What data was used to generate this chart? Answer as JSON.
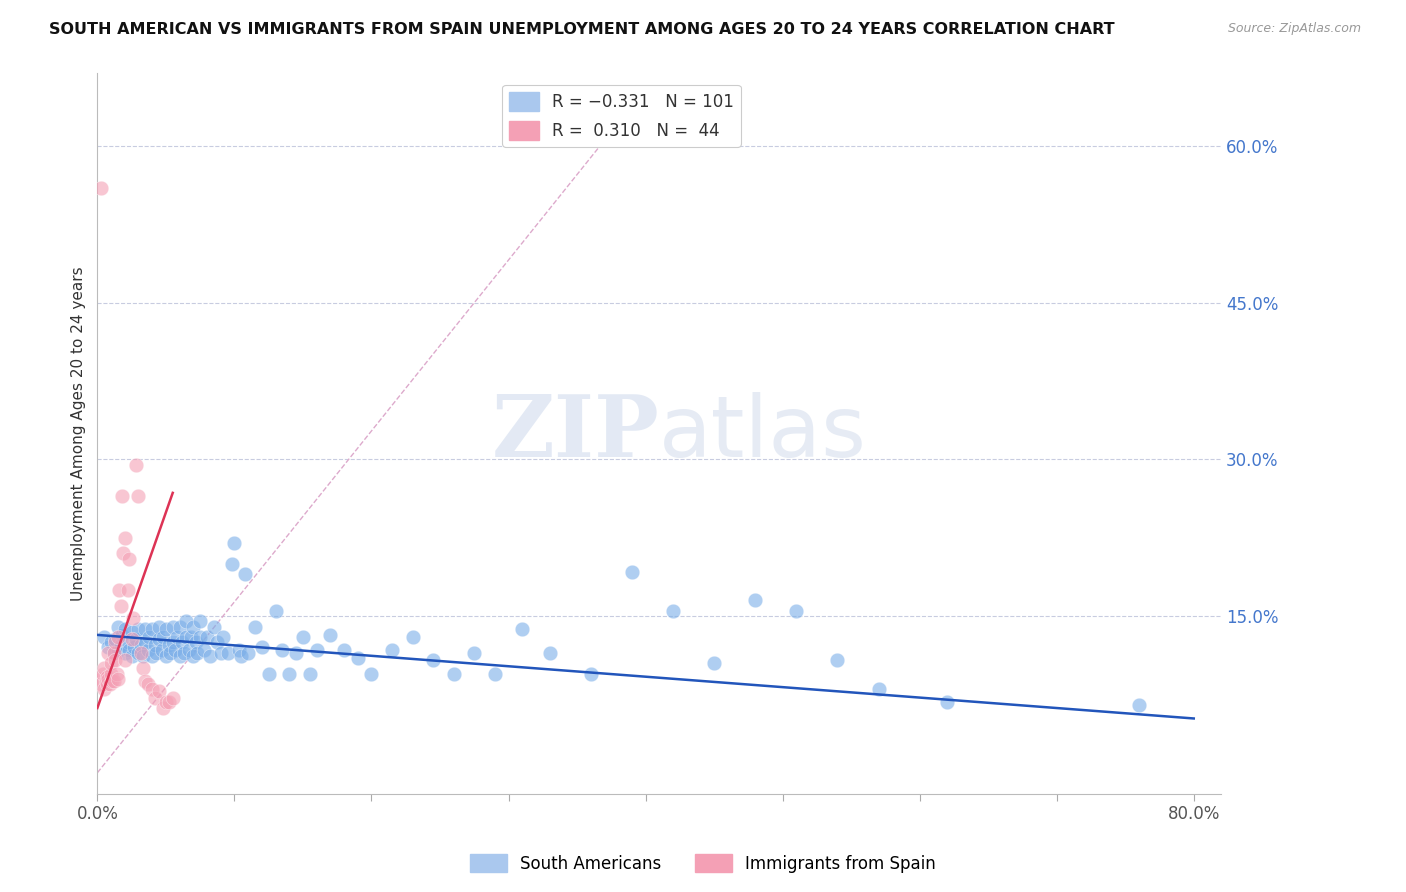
{
  "title": "SOUTH AMERICAN VS IMMIGRANTS FROM SPAIN UNEMPLOYMENT AMONG AGES 20 TO 24 YEARS CORRELATION CHART",
  "source": "Source: ZipAtlas.com",
  "ylabel": "Unemployment Among Ages 20 to 24 years",
  "xlim": [
    0.0,
    0.82
  ],
  "ylim": [
    -0.02,
    0.67
  ],
  "y_ticks_right": [
    0.15,
    0.3,
    0.45,
    0.6
  ],
  "y_tick_labels_right": [
    "15.0%",
    "30.0%",
    "45.0%",
    "60.0%"
  ],
  "watermark_zip": "ZIP",
  "watermark_atlas": "atlas",
  "blue_color": "#7aaee8",
  "pink_color": "#f4a0b5",
  "blue_line_color": "#2255bb",
  "pink_line_color": "#dd3355",
  "diag_line_color": "#ddaacc",
  "blue_line_x": [
    0.0,
    0.8
  ],
  "blue_line_y": [
    0.132,
    0.052
  ],
  "pink_line_x": [
    0.0,
    0.055
  ],
  "pink_line_y": [
    0.062,
    0.268
  ],
  "diag_line_x": [
    0.0,
    0.385
  ],
  "diag_line_y": [
    0.0,
    0.63
  ],
  "blue_scatter_x": [
    0.005,
    0.008,
    0.01,
    0.012,
    0.013,
    0.015,
    0.015,
    0.017,
    0.018,
    0.02,
    0.02,
    0.022,
    0.023,
    0.025,
    0.025,
    0.027,
    0.028,
    0.03,
    0.03,
    0.032,
    0.033,
    0.035,
    0.035,
    0.037,
    0.038,
    0.04,
    0.04,
    0.042,
    0.043,
    0.045,
    0.045,
    0.047,
    0.048,
    0.05,
    0.05,
    0.052,
    0.053,
    0.055,
    0.055,
    0.057,
    0.058,
    0.06,
    0.06,
    0.062,
    0.063,
    0.065,
    0.065,
    0.067,
    0.068,
    0.07,
    0.07,
    0.072,
    0.073,
    0.075,
    0.075,
    0.078,
    0.08,
    0.082,
    0.085,
    0.087,
    0.09,
    0.092,
    0.095,
    0.098,
    0.1,
    0.103,
    0.105,
    0.108,
    0.11,
    0.115,
    0.12,
    0.125,
    0.13,
    0.135,
    0.14,
    0.145,
    0.15,
    0.155,
    0.16,
    0.17,
    0.18,
    0.19,
    0.2,
    0.215,
    0.23,
    0.245,
    0.26,
    0.275,
    0.29,
    0.31,
    0.33,
    0.36,
    0.39,
    0.42,
    0.45,
    0.48,
    0.51,
    0.54,
    0.57,
    0.62,
    0.76
  ],
  "blue_scatter_y": [
    0.13,
    0.12,
    0.125,
    0.115,
    0.128,
    0.118,
    0.14,
    0.122,
    0.132,
    0.115,
    0.138,
    0.125,
    0.118,
    0.112,
    0.135,
    0.12,
    0.128,
    0.115,
    0.138,
    0.122,
    0.112,
    0.125,
    0.138,
    0.118,
    0.13,
    0.112,
    0.138,
    0.122,
    0.115,
    0.128,
    0.14,
    0.118,
    0.13,
    0.112,
    0.138,
    0.122,
    0.115,
    0.125,
    0.14,
    0.118,
    0.13,
    0.112,
    0.14,
    0.125,
    0.115,
    0.13,
    0.145,
    0.118,
    0.13,
    0.112,
    0.14,
    0.125,
    0.115,
    0.13,
    0.145,
    0.118,
    0.13,
    0.112,
    0.14,
    0.125,
    0.115,
    0.13,
    0.115,
    0.2,
    0.22,
    0.118,
    0.112,
    0.19,
    0.115,
    0.14,
    0.12,
    0.095,
    0.155,
    0.118,
    0.095,
    0.115,
    0.13,
    0.095,
    0.118,
    0.132,
    0.118,
    0.11,
    0.095,
    0.118,
    0.13,
    0.108,
    0.095,
    0.115,
    0.095,
    0.138,
    0.115,
    0.095,
    0.192,
    0.155,
    0.105,
    0.165,
    0.155,
    0.108,
    0.08,
    0.068,
    0.065
  ],
  "pink_scatter_x": [
    0.002,
    0.003,
    0.004,
    0.005,
    0.005,
    0.006,
    0.007,
    0.007,
    0.008,
    0.008,
    0.009,
    0.01,
    0.01,
    0.011,
    0.012,
    0.012,
    0.013,
    0.013,
    0.014,
    0.015,
    0.015,
    0.016,
    0.017,
    0.018,
    0.019,
    0.02,
    0.02,
    0.022,
    0.023,
    0.025,
    0.026,
    0.028,
    0.03,
    0.032,
    0.033,
    0.035,
    0.037,
    0.04,
    0.042,
    0.045,
    0.048,
    0.05,
    0.052,
    0.055
  ],
  "pink_scatter_y": [
    0.09,
    0.085,
    0.095,
    0.08,
    0.1,
    0.088,
    0.092,
    0.085,
    0.09,
    0.115,
    0.085,
    0.095,
    0.105,
    0.088,
    0.115,
    0.088,
    0.125,
    0.108,
    0.095,
    0.13,
    0.09,
    0.175,
    0.16,
    0.265,
    0.21,
    0.225,
    0.108,
    0.175,
    0.205,
    0.128,
    0.148,
    0.295,
    0.265,
    0.115,
    0.1,
    0.088,
    0.085,
    0.08,
    0.072,
    0.078,
    0.062,
    0.068,
    0.068,
    0.072
  ],
  "pink_scatter_outlier_x": [
    0.003
  ],
  "pink_scatter_outlier_y": [
    0.56
  ]
}
